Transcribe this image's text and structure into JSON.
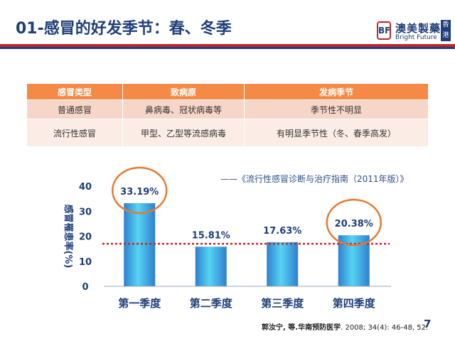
{
  "header": {
    "title": "01-感冒的好发季节：春、冬季",
    "logo_cn": "澳美製藥",
    "logo_en": "Bright Future",
    "logo_badge": "香港",
    "logo_mark": "BF"
  },
  "table": {
    "headers": [
      "感冒类型",
      "致病原",
      "发病季节"
    ],
    "rows": [
      [
        "普通感冒",
        "鼻病毒、冠状病毒等",
        "季节性不明显"
      ],
      [
        "流行性感冒",
        "甲型、乙型等流感病毒",
        "有明显季节性（冬、春季高发）"
      ]
    ]
  },
  "source_note": "——《流行性感冒诊断与治疗指南（2011年版）》",
  "citation": {
    "authors": "郭汝宁, 等.",
    "journal": "华南预防医学",
    "details": ". 2008; 34(4): 46-48, 52."
  },
  "page_number": "7",
  "colors": {
    "title": "#1f3f7a",
    "header_orange": "#f58a47",
    "bar_top": "#3a8fd8",
    "bar_mid": "#4fd0f0",
    "highlight_circle": "#e8782e",
    "reference_line": "#d0202a"
  },
  "chart_data": {
    "type": "bar",
    "ylabel": "感冒罹患率(%)",
    "categories": [
      "第一季度",
      "第二季度",
      "第三季度",
      "第四季度"
    ],
    "values": [
      33.19,
      15.81,
      17.63,
      20.38
    ],
    "data_labels": [
      "33.19%",
      "15.81%",
      "17.63%",
      "20.38%"
    ],
    "yticks": [
      0,
      10,
      20,
      30,
      40
    ],
    "ylim": [
      0,
      40
    ],
    "reference_line": 17.0,
    "highlighted_categories": [
      "第一季度",
      "第四季度"
    ],
    "grid": false,
    "legend": "none"
  }
}
